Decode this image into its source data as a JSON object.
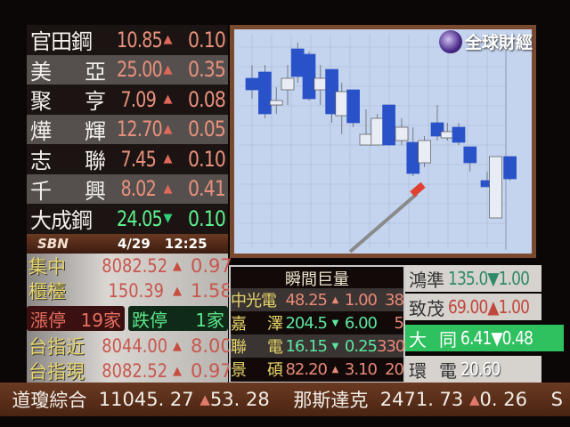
{
  "stocks": [
    {
      "name": "官田鋼",
      "price": "10.85",
      "dir": "up",
      "change": "0.10"
    },
    {
      "name": "美亞",
      "price": "25.00",
      "dir": "up",
      "change": "0.35"
    },
    {
      "name": "聚亨",
      "price": "7.09",
      "dir": "up",
      "change": "0.08"
    },
    {
      "name": "燁輝",
      "price": "12.70",
      "dir": "up",
      "change": "0.05"
    },
    {
      "name": "志聯",
      "price": "7.45",
      "dir": "up",
      "change": "0.10"
    },
    {
      "name": "千興",
      "price": "8.02",
      "dir": "up",
      "change": "0.41"
    },
    {
      "name": "大成鋼",
      "price": "24.05",
      "dir": "down",
      "change": "0.10"
    }
  ],
  "bar": {
    "logo": "SBN",
    "date": "4/29",
    "time": "12:25"
  },
  "indices": [
    {
      "name": "集中",
      "value": "8082.52",
      "dir": "up",
      "change": "0.97"
    },
    {
      "name": "櫃檯",
      "value": "150.39",
      "dir": "up",
      "change": "1.58"
    }
  ],
  "limits": {
    "up_label": "漲停",
    "up_count": "19家",
    "down_label": "跌停",
    "down_count": "1家"
  },
  "futures": [
    {
      "name": "台指近",
      "value": "8044.00",
      "dir": "up",
      "change": "8.00"
    },
    {
      "name": "台指現",
      "value": "8082.52",
      "dir": "up",
      "change": "0.97"
    }
  ],
  "volume": {
    "title": "瞬間巨量",
    "rows": [
      {
        "name": "中光電",
        "price": "48.25",
        "dir": "up",
        "change": "1.00",
        "qty": "38"
      },
      {
        "name": "嘉澤",
        "price": "204.5",
        "dir": "down",
        "change": "6.00",
        "qty": "5"
      },
      {
        "name": "聯電",
        "price": "16.15",
        "dir": "down",
        "change": "0.25",
        "qty": "330"
      },
      {
        "name": "景碩",
        "price": "82.20",
        "dir": "up",
        "change": "3.10",
        "qty": "20"
      }
    ]
  },
  "right": [
    {
      "name": "鴻準",
      "text": "135.0▼1.00",
      "color": "#2f8a6a"
    },
    {
      "name": "致茂",
      "text": "69.00▲1.00",
      "color": "#c0483c"
    },
    {
      "name": "大同",
      "text": "6.41▼0.48",
      "color": "#ffffff"
    },
    {
      "name": "環電",
      "text": "20.60",
      "color": "#ffffff"
    }
  ],
  "channel_logo": "全球財經",
  "ticker": {
    "items": [
      {
        "name": "道瓊綜合",
        "value": "11045. 27",
        "dir": "up",
        "change": "53. 28"
      },
      {
        "name": "那斯達克",
        "value": "2471. 73",
        "dir": "up",
        "change": "0. 26"
      }
    ],
    "tail": "S"
  },
  "colors": {
    "up": "#e0685a",
    "down": "#2fcf7a",
    "highlight": "#2fc060"
  }
}
